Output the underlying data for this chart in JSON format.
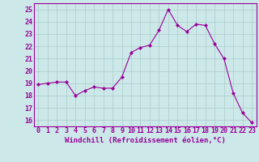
{
  "x": [
    0,
    1,
    2,
    3,
    4,
    5,
    6,
    7,
    8,
    9,
    10,
    11,
    12,
    13,
    14,
    15,
    16,
    17,
    18,
    19,
    20,
    21,
    22,
    23
  ],
  "y": [
    18.9,
    19.0,
    19.1,
    19.1,
    18.0,
    18.4,
    18.7,
    18.6,
    18.6,
    19.5,
    21.5,
    21.9,
    22.1,
    23.3,
    25.0,
    23.7,
    23.2,
    23.8,
    23.7,
    22.2,
    21.0,
    18.2,
    16.6,
    15.8
  ],
  "line_color": "#990099",
  "marker": "D",
  "marker_size": 2.0,
  "bg_color": "#cce8e8",
  "grid_color": "#aacccc",
  "axis_color": "#990099",
  "xlabel": "Windchill (Refroidissement éolien,°C)",
  "xlabel_fontsize": 6.5,
  "tick_fontsize": 6.0,
  "ylim": [
    15.5,
    25.5
  ],
  "yticks": [
    16,
    17,
    18,
    19,
    20,
    21,
    22,
    23,
    24,
    25
  ],
  "xticks": [
    0,
    1,
    2,
    3,
    4,
    5,
    6,
    7,
    8,
    9,
    10,
    11,
    12,
    13,
    14,
    15,
    16,
    17,
    18,
    19,
    20,
    21,
    22,
    23
  ]
}
